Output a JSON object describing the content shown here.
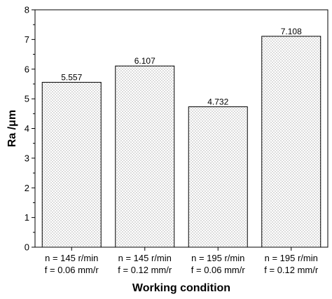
{
  "chart_data": {
    "type": "bar",
    "xlabel": "Working condition",
    "ylabel": "Ra /μm",
    "ylim": [
      0,
      8
    ],
    "yticks": [
      "0",
      "1",
      "2",
      "3",
      "4",
      "5",
      "6",
      "7",
      "8"
    ],
    "categories": [
      [
        "n = 145 r/min",
        "f = 0.06 mm/r"
      ],
      [
        "n = 145 r/min",
        "f = 0.12 mm/r"
      ],
      [
        "n = 195 r/min",
        "f = 0.06 mm/r"
      ],
      [
        "n = 195 r/min",
        "f = 0.12 mm/r"
      ]
    ],
    "values": [
      5.557,
      6.107,
      4.732,
      7.108
    ],
    "value_labels": [
      "5.557",
      "6.107",
      "4.732",
      "7.108"
    ],
    "bar_fill": "dotted",
    "bar_color": "#ffffff",
    "edge_color": "#000000",
    "grid": false,
    "legend": "none"
  }
}
